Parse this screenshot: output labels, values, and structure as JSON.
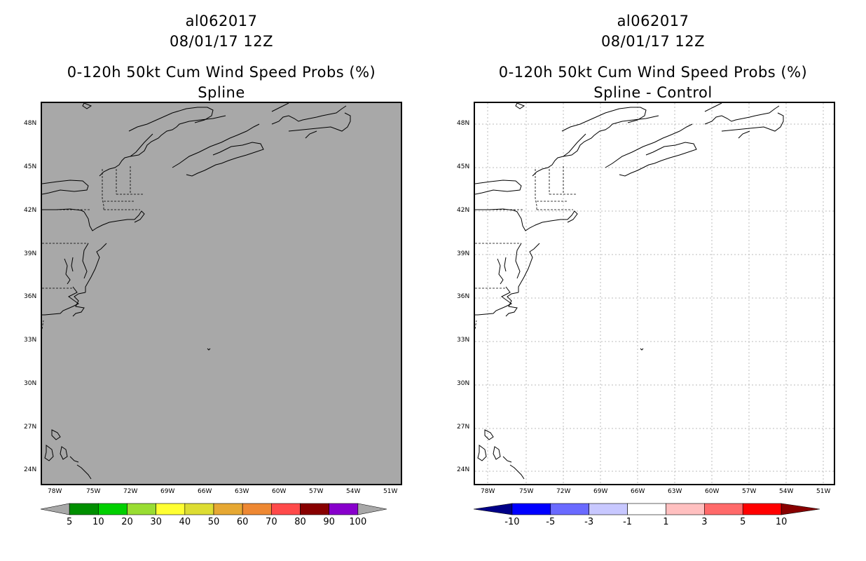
{
  "left_panel": {
    "storm_id": "al062017",
    "datetime": "08/01/17 12Z",
    "product": "0-120h 50kt Cum Wind Speed Probs (%)",
    "subtitle": "Spline",
    "fill_color": "#a8a8a8",
    "colorbar": {
      "labels": [
        "5",
        "10",
        "20",
        "30",
        "40",
        "50",
        "60",
        "70",
        "80",
        "90",
        "100"
      ],
      "colors": [
        "#a8a8a8",
        "#008f00",
        "#00d000",
        "#99dd33",
        "#ffff33",
        "#dddd33",
        "#e6a833",
        "#ee8833",
        "#ff4a4a",
        "#880000",
        "#8800cc",
        "#a8a8a8"
      ]
    }
  },
  "right_panel": {
    "storm_id": "al062017",
    "datetime": "08/01/17 12Z",
    "product": "0-120h 50kt Cum Wind Speed Probs (%)",
    "subtitle": "Spline - Control",
    "fill_color": "#ffffff",
    "colorbar": {
      "labels": [
        "-10",
        "-5",
        "-3",
        "-1",
        "1",
        "3",
        "5",
        "10"
      ],
      "colors": [
        "#000088",
        "#0000ff",
        "#6a6aff",
        "#c8c8ff",
        "#ffffff",
        "#ffc0c0",
        "#ff6a6a",
        "#ff0000",
        "#880000"
      ]
    }
  },
  "axes": {
    "lat_labels": [
      "48N",
      "45N",
      "42N",
      "39N",
      "36N",
      "33N",
      "30N",
      "27N",
      "24N"
    ],
    "lon_labels": [
      "78W",
      "75W",
      "72W",
      "69W",
      "66W",
      "63W",
      "60W",
      "57W",
      "54W",
      "51W"
    ]
  }
}
